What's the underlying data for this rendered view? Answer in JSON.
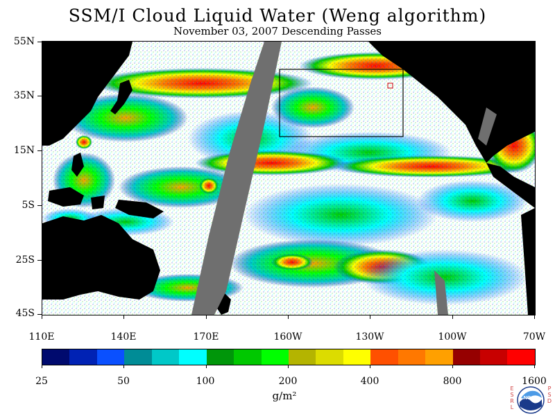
{
  "header": {
    "title": "SSM/I Cloud Liquid Water (Weng algorithm)",
    "subtitle": "November 03, 2007  Descending Passes"
  },
  "map": {
    "lat_labels": [
      "55N",
      "35N",
      "15N",
      "5S",
      "25S",
      "45S"
    ],
    "lon_labels": [
      "110E",
      "140E",
      "170E",
      "160W",
      "130W",
      "100W",
      "70W"
    ],
    "land_color": "#000000",
    "no_data_color": "#6f6f6f",
    "background_color": "#ffffff",
    "inset_box_color": "#000000"
  },
  "colorbar": {
    "colors": [
      "#000a6e",
      "#0022b4",
      "#0a50ff",
      "#008c96",
      "#00c8c8",
      "#00ffff",
      "#00960a",
      "#00c800",
      "#00ff00",
      "#b4b400",
      "#dcdc00",
      "#ffff00",
      "#ff5000",
      "#ff7800",
      "#ffa000",
      "#960000",
      "#c80000",
      "#ff0000"
    ],
    "labels": [
      "25",
      "50",
      "100",
      "200",
      "400",
      "800",
      "1600"
    ],
    "unit": "g/m²"
  },
  "logo": {
    "left_letters": "ESRL",
    "right_letters": "PSD",
    "emblem": "noaa-emblem",
    "emblem_text": "NOAA"
  }
}
